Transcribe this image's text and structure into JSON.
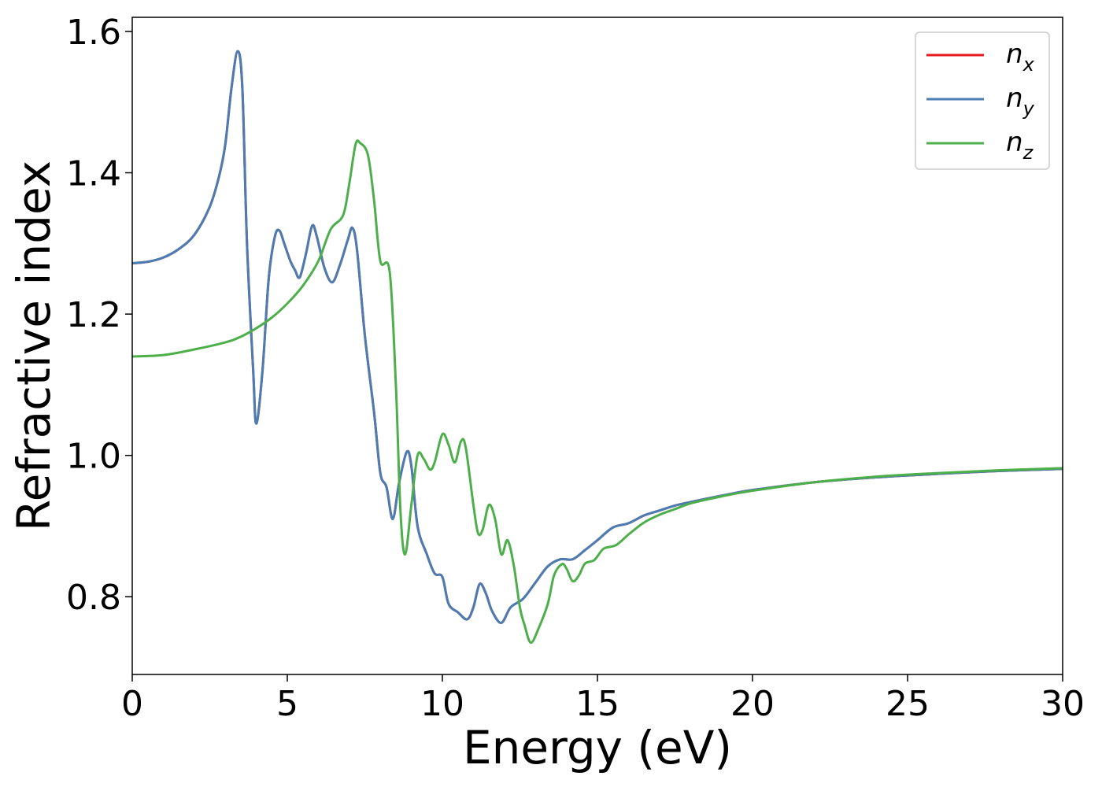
{
  "chart_data": {
    "type": "line",
    "title": "",
    "xlabel": "Energy (eV)",
    "ylabel": "Refractive index",
    "xlim": [
      0,
      30
    ],
    "ylim": [
      0.69,
      1.62
    ],
    "xticks": [
      0,
      5,
      10,
      15,
      20,
      25,
      30
    ],
    "xtick_labels": [
      "0",
      "5",
      "10",
      "15",
      "20",
      "25",
      "30"
    ],
    "yticks": [
      0.8,
      1.0,
      1.2,
      1.4,
      1.6
    ],
    "ytick_labels": [
      "0.8",
      "1.0",
      "1.2",
      "1.4",
      "1.6"
    ],
    "grid": false,
    "legend_position": "top-right",
    "series": [
      {
        "name": "n_x",
        "legend_main": "n",
        "legend_sub": "x",
        "color": "#e41a1c",
        "points": [
          [
            0,
            1.272
          ],
          [
            0.5,
            1.274
          ],
          [
            1,
            1.28
          ],
          [
            1.5,
            1.292
          ],
          [
            2,
            1.312
          ],
          [
            2.5,
            1.352
          ],
          [
            2.8,
            1.395
          ],
          [
            3.0,
            1.44
          ],
          [
            3.2,
            1.52
          ],
          [
            3.4,
            1.572
          ],
          [
            3.55,
            1.52
          ],
          [
            3.7,
            1.3
          ],
          [
            3.9,
            1.12
          ],
          [
            4.0,
            1.045
          ],
          [
            4.2,
            1.12
          ],
          [
            4.4,
            1.25
          ],
          [
            4.6,
            1.31
          ],
          [
            4.75,
            1.318
          ],
          [
            4.9,
            1.3
          ],
          [
            5.1,
            1.275
          ],
          [
            5.25,
            1.262
          ],
          [
            5.4,
            1.252
          ],
          [
            5.6,
            1.285
          ],
          [
            5.8,
            1.325
          ],
          [
            5.95,
            1.31
          ],
          [
            6.2,
            1.265
          ],
          [
            6.45,
            1.245
          ],
          [
            6.7,
            1.27
          ],
          [
            6.95,
            1.305
          ],
          [
            7.1,
            1.322
          ],
          [
            7.25,
            1.29
          ],
          [
            7.5,
            1.17
          ],
          [
            7.8,
            1.06
          ],
          [
            8.0,
            0.975
          ],
          [
            8.2,
            0.955
          ],
          [
            8.4,
            0.91
          ],
          [
            8.6,
            0.96
          ],
          [
            8.85,
            1.005
          ],
          [
            9.0,
            0.985
          ],
          [
            9.2,
            0.9
          ],
          [
            9.5,
            0.86
          ],
          [
            9.75,
            0.833
          ],
          [
            10.0,
            0.828
          ],
          [
            10.2,
            0.79
          ],
          [
            10.5,
            0.778
          ],
          [
            10.8,
            0.768
          ],
          [
            11.0,
            0.785
          ],
          [
            11.2,
            0.818
          ],
          [
            11.4,
            0.805
          ],
          [
            11.6,
            0.78
          ],
          [
            11.9,
            0.763
          ],
          [
            12.2,
            0.785
          ],
          [
            12.6,
            0.797
          ],
          [
            13.0,
            0.82
          ],
          [
            13.4,
            0.843
          ],
          [
            13.8,
            0.853
          ],
          [
            14.2,
            0.853
          ],
          [
            14.6,
            0.866
          ],
          [
            15.0,
            0.88
          ],
          [
            15.5,
            0.898
          ],
          [
            16.0,
            0.904
          ],
          [
            16.5,
            0.915
          ],
          [
            17.0,
            0.922
          ],
          [
            17.5,
            0.929
          ],
          [
            18,
            0.934
          ],
          [
            19,
            0.943
          ],
          [
            20,
            0.951
          ],
          [
            22,
            0.962
          ],
          [
            24,
            0.969
          ],
          [
            26,
            0.974
          ],
          [
            28,
            0.978
          ],
          [
            30,
            0.981
          ]
        ]
      },
      {
        "name": "n_y",
        "legend_main": "n",
        "legend_sub": "y",
        "color": "#4a7db3",
        "points": [
          [
            0,
            1.272
          ],
          [
            0.5,
            1.274
          ],
          [
            1,
            1.28
          ],
          [
            1.5,
            1.292
          ],
          [
            2,
            1.312
          ],
          [
            2.5,
            1.352
          ],
          [
            2.8,
            1.395
          ],
          [
            3.0,
            1.44
          ],
          [
            3.2,
            1.52
          ],
          [
            3.4,
            1.572
          ],
          [
            3.55,
            1.52
          ],
          [
            3.7,
            1.3
          ],
          [
            3.9,
            1.12
          ],
          [
            4.0,
            1.045
          ],
          [
            4.2,
            1.12
          ],
          [
            4.4,
            1.25
          ],
          [
            4.6,
            1.31
          ],
          [
            4.75,
            1.318
          ],
          [
            4.9,
            1.3
          ],
          [
            5.1,
            1.275
          ],
          [
            5.25,
            1.262
          ],
          [
            5.4,
            1.252
          ],
          [
            5.6,
            1.285
          ],
          [
            5.8,
            1.325
          ],
          [
            5.95,
            1.31
          ],
          [
            6.2,
            1.265
          ],
          [
            6.45,
            1.245
          ],
          [
            6.7,
            1.27
          ],
          [
            6.95,
            1.305
          ],
          [
            7.1,
            1.322
          ],
          [
            7.25,
            1.29
          ],
          [
            7.5,
            1.17
          ],
          [
            7.8,
            1.06
          ],
          [
            8.0,
            0.975
          ],
          [
            8.2,
            0.955
          ],
          [
            8.4,
            0.91
          ],
          [
            8.6,
            0.96
          ],
          [
            8.85,
            1.005
          ],
          [
            9.0,
            0.985
          ],
          [
            9.2,
            0.9
          ],
          [
            9.5,
            0.86
          ],
          [
            9.75,
            0.833
          ],
          [
            10.0,
            0.828
          ],
          [
            10.2,
            0.79
          ],
          [
            10.5,
            0.778
          ],
          [
            10.8,
            0.768
          ],
          [
            11.0,
            0.785
          ],
          [
            11.2,
            0.818
          ],
          [
            11.4,
            0.805
          ],
          [
            11.6,
            0.78
          ],
          [
            11.9,
            0.763
          ],
          [
            12.2,
            0.785
          ],
          [
            12.6,
            0.797
          ],
          [
            13.0,
            0.82
          ],
          [
            13.4,
            0.843
          ],
          [
            13.8,
            0.853
          ],
          [
            14.2,
            0.853
          ],
          [
            14.6,
            0.866
          ],
          [
            15.0,
            0.88
          ],
          [
            15.5,
            0.898
          ],
          [
            16.0,
            0.904
          ],
          [
            16.5,
            0.915
          ],
          [
            17.0,
            0.922
          ],
          [
            17.5,
            0.929
          ],
          [
            18,
            0.934
          ],
          [
            19,
            0.943
          ],
          [
            20,
            0.951
          ],
          [
            22,
            0.962
          ],
          [
            24,
            0.969
          ],
          [
            26,
            0.974
          ],
          [
            28,
            0.978
          ],
          [
            30,
            0.981
          ]
        ]
      },
      {
        "name": "n_z",
        "legend_main": "n",
        "legend_sub": "z",
        "color": "#4daf4a",
        "points": [
          [
            0,
            1.14
          ],
          [
            1,
            1.142
          ],
          [
            2,
            1.15
          ],
          [
            3,
            1.16
          ],
          [
            3.5,
            1.168
          ],
          [
            4,
            1.18
          ],
          [
            4.5,
            1.195
          ],
          [
            5,
            1.215
          ],
          [
            5.5,
            1.24
          ],
          [
            6,
            1.275
          ],
          [
            6.4,
            1.32
          ],
          [
            6.8,
            1.34
          ],
          [
            7.0,
            1.385
          ],
          [
            7.2,
            1.44
          ],
          [
            7.35,
            1.442
          ],
          [
            7.6,
            1.425
          ],
          [
            7.8,
            1.36
          ],
          [
            8.0,
            1.275
          ],
          [
            8.3,
            1.26
          ],
          [
            8.5,
            1.1
          ],
          [
            8.65,
            0.92
          ],
          [
            8.8,
            0.86
          ],
          [
            9.0,
            0.93
          ],
          [
            9.2,
            1.0
          ],
          [
            9.4,
            0.995
          ],
          [
            9.6,
            0.98
          ],
          [
            9.75,
            0.99
          ],
          [
            10.0,
            1.03
          ],
          [
            10.2,
            1.015
          ],
          [
            10.4,
            0.99
          ],
          [
            10.6,
            1.02
          ],
          [
            10.75,
            1.012
          ],
          [
            11.0,
            0.93
          ],
          [
            11.15,
            0.89
          ],
          [
            11.3,
            0.895
          ],
          [
            11.5,
            0.93
          ],
          [
            11.7,
            0.91
          ],
          [
            11.9,
            0.86
          ],
          [
            12.1,
            0.88
          ],
          [
            12.3,
            0.845
          ],
          [
            12.5,
            0.785
          ],
          [
            12.65,
            0.76
          ],
          [
            12.85,
            0.735
          ],
          [
            13.1,
            0.755
          ],
          [
            13.4,
            0.79
          ],
          [
            13.6,
            0.83
          ],
          [
            13.85,
            0.846
          ],
          [
            14.0,
            0.84
          ],
          [
            14.2,
            0.822
          ],
          [
            14.4,
            0.83
          ],
          [
            14.6,
            0.847
          ],
          [
            14.9,
            0.852
          ],
          [
            15.2,
            0.868
          ],
          [
            15.6,
            0.873
          ],
          [
            16.0,
            0.888
          ],
          [
            16.5,
            0.905
          ],
          [
            17.0,
            0.916
          ],
          [
            17.5,
            0.924
          ],
          [
            18,
            0.932
          ],
          [
            19,
            0.942
          ],
          [
            20,
            0.95
          ],
          [
            22,
            0.962
          ],
          [
            24,
            0.97
          ],
          [
            26,
            0.975
          ],
          [
            28,
            0.979
          ],
          [
            30,
            0.982
          ]
        ]
      }
    ]
  }
}
